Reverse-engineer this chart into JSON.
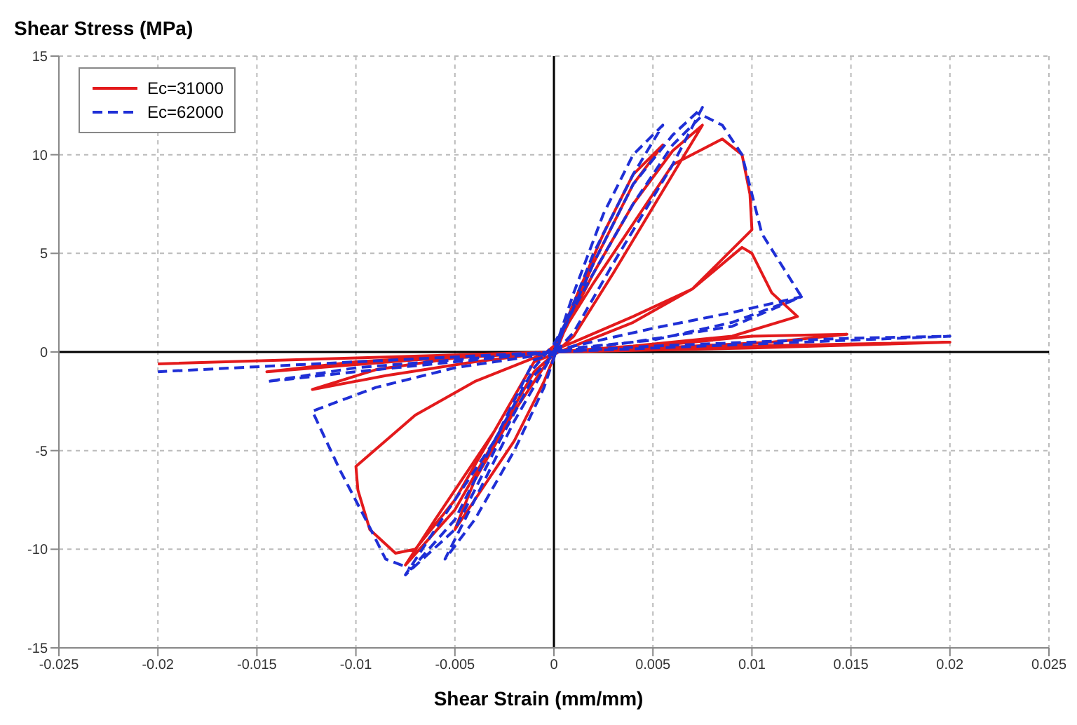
{
  "chart_data": {
    "type": "line",
    "ylabel": "Shear Stress (MPa)",
    "xlabel": "Shear Strain (mm/mm)",
    "xlim": [
      -0.025,
      0.025
    ],
    "xticks": [
      -0.025,
      -0.02,
      -0.015,
      -0.01,
      -0.005,
      0,
      0.005,
      0.01,
      0.015,
      0.02,
      0.025
    ],
    "ylim": [
      -15,
      15
    ],
    "yticks": [
      -15,
      -10,
      -5,
      0,
      5,
      10,
      15
    ],
    "grid": true,
    "legend": "top left",
    "marker": "none",
    "series": [
      {
        "name": "Ec=31000",
        "color": "#e31a1c",
        "line_style": "solid",
        "x": [
          0,
          0.001,
          0.0025,
          0.004,
          0.0055,
          0.004,
          0.002,
          0.0005,
          -0.0005,
          -0.002,
          -0.004,
          -0.005,
          -0.004,
          -0.002,
          0,
          0.002,
          0.004,
          0.006,
          0.0075,
          0.006,
          0.003,
          0.001,
          -0.001,
          -0.003,
          -0.005,
          -0.0075,
          -0.006,
          -0.003,
          -0.001,
          0,
          0.002,
          0.004,
          0.006,
          0.0085,
          0.0095,
          0.0099,
          0.01,
          0.007,
          0.004,
          0.001,
          -0.001,
          -0.003,
          -0.005,
          -0.007,
          -0.008,
          -0.0093,
          -0.0099,
          -0.01,
          -0.007,
          -0.004,
          -0.001,
          0.001,
          0.004,
          0.007,
          0.0095,
          0.01,
          0.011,
          0.0123,
          0.009,
          0.004,
          0,
          -0.004,
          -0.0085,
          -0.0122,
          -0.009,
          -0.005,
          0,
          0.005,
          0.01,
          0.0148,
          0.011,
          0.005,
          0,
          -0.007,
          -0.0145,
          -0.01,
          -0.005,
          0,
          0.01,
          0.02,
          0.01,
          0,
          -0.01,
          -0.02
        ],
        "values": [
          0,
          2.5,
          6,
          9,
          10.5,
          8.5,
          4.5,
          1,
          -1.5,
          -4.5,
          -7.5,
          -9,
          -6.5,
          -3,
          0,
          4,
          7.5,
          10.2,
          11.5,
          9,
          4,
          0.8,
          -1,
          -4.5,
          -8,
          -10.8,
          -8.5,
          -4,
          -0.5,
          0.3,
          3.5,
          6.5,
          9.5,
          10.8,
          10,
          8,
          6.2,
          3.2,
          1.5,
          0.3,
          -0.5,
          -4,
          -7.5,
          -10,
          -10.2,
          -9,
          -7,
          -5.8,
          -3.2,
          -1.5,
          -0.3,
          0.5,
          1.8,
          3.2,
          5.3,
          5,
          3,
          1.8,
          0.8,
          0.3,
          0,
          -0.5,
          -1.2,
          -1.9,
          -0.9,
          -0.3,
          0,
          0.3,
          0.8,
          0.9,
          0.5,
          0.2,
          0,
          -0.4,
          -1,
          -0.5,
          -0.2,
          0,
          0.3,
          0.5,
          0.2,
          0,
          -0.3,
          -0.6
        ]
      },
      {
        "name": "Ec=62000",
        "color": "#1f2fd6",
        "line_style": "dashed",
        "x": [
          0,
          0.001,
          0.0025,
          0.004,
          0.0055,
          0.004,
          0.002,
          0.0005,
          -0.0005,
          -0.002,
          -0.004,
          -0.0055,
          -0.004,
          -0.002,
          0,
          0.002,
          0.004,
          0.006,
          0.0075,
          0.006,
          0.003,
          0.001,
          -0.001,
          -0.003,
          -0.005,
          -0.0075,
          -0.006,
          -0.003,
          -0.001,
          0,
          0.002,
          0.004,
          0.006,
          0.0075,
          0.0085,
          0.0095,
          0.0105,
          0.0125,
          0.009,
          0.005,
          0.001,
          -0.001,
          -0.003,
          -0.005,
          -0.0072,
          -0.0085,
          -0.0095,
          -0.0108,
          -0.0122,
          -0.009,
          -0.005,
          -0.001,
          0.001,
          0.005,
          0.009,
          0.0125,
          0.009,
          0.004,
          0,
          -0.005,
          -0.01,
          -0.0145,
          -0.01,
          -0.005,
          0,
          0.005,
          0.01,
          0.015,
          0.02,
          0.01,
          0,
          -0.01,
          -0.02
        ],
        "values": [
          0,
          3,
          7,
          10,
          11.5,
          9,
          5,
          1.2,
          -1.8,
          -5,
          -8.5,
          -10.5,
          -7.5,
          -3.5,
          0,
          4.5,
          8.5,
          11,
          12.4,
          9.5,
          4.5,
          1,
          -1.2,
          -5,
          -9,
          -11.3,
          -9,
          -4.5,
          -0.8,
          0.4,
          4,
          7.5,
          10.5,
          12,
          11.5,
          10,
          6,
          2.8,
          1.5,
          0.6,
          0.2,
          -0.4,
          -4.5,
          -8.5,
          -11,
          -10.5,
          -8.5,
          -6,
          -3,
          -1.8,
          -0.8,
          -0.2,
          0.3,
          1.2,
          2,
          2.8,
          1.3,
          0.5,
          0,
          -0.5,
          -1,
          -1.5,
          -0.8,
          -0.4,
          0,
          0.3,
          0.5,
          0.7,
          0.8,
          0.4,
          0,
          -0.5,
          -1
        ]
      }
    ]
  }
}
